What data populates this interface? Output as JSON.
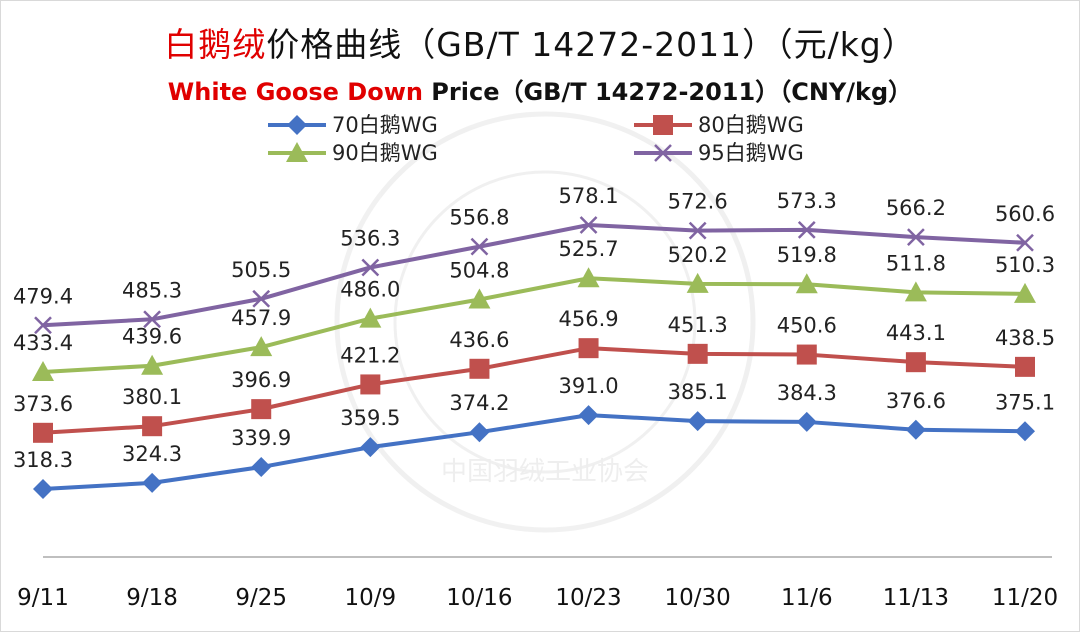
{
  "title": {
    "cn_red": "白鹅绒",
    "cn_rest": "价格曲线（GB/T 14272-2011）（元/kg）",
    "en_red": "White Goose Down",
    "en_rest": " Price（GB/T 14272-2011）（CNY/kg）"
  },
  "watermark": "中国羽绒工业协会",
  "chart_data": {
    "type": "line",
    "categories": [
      "9/11",
      "9/18",
      "9/25",
      "10/9",
      "10/16",
      "10/23",
      "10/30",
      "11/6",
      "11/13",
      "11/20"
    ],
    "ylim": [
      250,
      650
    ],
    "grid": false,
    "legend": "top",
    "series": [
      {
        "name": "70白鹅WG",
        "color": "#4472c4",
        "marker": "diamond",
        "values": [
          318.3,
          324.3,
          339.9,
          359.5,
          374.2,
          391.0,
          385.1,
          384.3,
          376.6,
          375.1
        ]
      },
      {
        "name": "80白鹅WG",
        "color": "#c0504d",
        "marker": "square",
        "values": [
          373.6,
          380.1,
          396.9,
          421.2,
          436.6,
          456.9,
          451.3,
          450.6,
          443.1,
          438.5
        ]
      },
      {
        "name": "90白鹅WG",
        "color": "#9bbb59",
        "marker": "triangle",
        "values": [
          433.4,
          439.6,
          457.9,
          486.0,
          504.8,
          525.7,
          520.2,
          519.8,
          511.8,
          510.3
        ]
      },
      {
        "name": "95白鹅WG",
        "color": "#8064a2",
        "marker": "x",
        "values": [
          479.4,
          485.3,
          505.5,
          536.3,
          556.8,
          578.1,
          572.6,
          573.3,
          566.2,
          560.6
        ]
      }
    ]
  }
}
